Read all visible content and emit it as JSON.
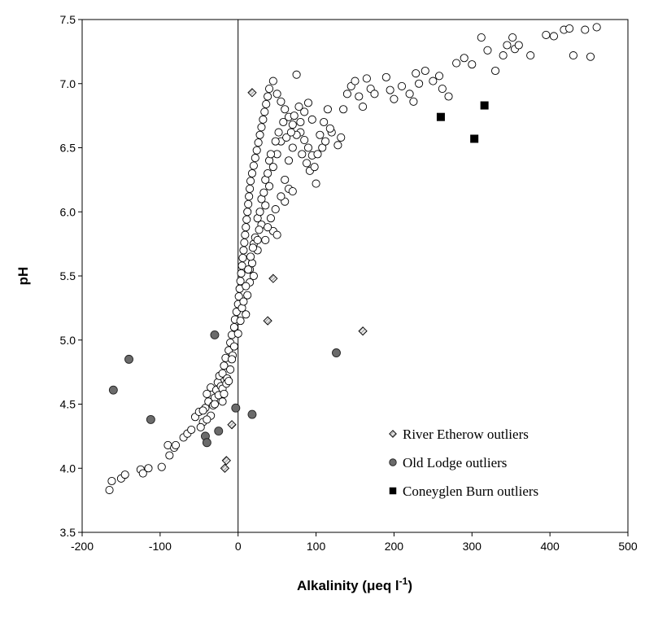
{
  "chart_data": {
    "type": "scatter",
    "xlabel": "Alkalinity (μeq l",
    "xlabel_superscript": "-1",
    "xlabel_close": ")",
    "ylabel": "pH",
    "xlim": [
      -200,
      500
    ],
    "ylim": [
      3.5,
      7.5
    ],
    "xticks": [
      -200,
      -100,
      0,
      100,
      200,
      300,
      400,
      500
    ],
    "yticks": [
      3.5,
      4.0,
      4.5,
      5.0,
      5.5,
      6.0,
      6.5,
      7.0,
      7.5
    ],
    "ytick_labels": [
      "3.5",
      "4.0",
      "4.5",
      "5.0",
      "5.5",
      "6.0",
      "6.5",
      "7.0",
      "7.5"
    ],
    "grid": false,
    "legend_position": "bottom-right",
    "vertical_reference_line_x": 0,
    "series": [
      {
        "name": "",
        "marker": "open-circle",
        "color": "#ffffff",
        "stroke": "#000000",
        "points": [
          [
            -165,
            3.83
          ],
          [
            -162,
            3.9
          ],
          [
            -150,
            3.92
          ],
          [
            -145,
            3.95
          ],
          [
            -125,
            3.99
          ],
          [
            -122,
            3.96
          ],
          [
            -115,
            4.0
          ],
          [
            -98,
            4.01
          ],
          [
            -90,
            4.18
          ],
          [
            -88,
            4.1
          ],
          [
            -82,
            4.16
          ],
          [
            -80,
            4.18
          ],
          [
            -70,
            4.24
          ],
          [
            -65,
            4.27
          ],
          [
            -60,
            4.3
          ],
          [
            -55,
            4.4
          ],
          [
            -50,
            4.44
          ],
          [
            -45,
            4.36
          ],
          [
            -42,
            4.47
          ],
          [
            -40,
            4.58
          ],
          [
            -38,
            4.52
          ],
          [
            -35,
            4.63
          ],
          [
            -32,
            4.49
          ],
          [
            -30,
            4.55
          ],
          [
            -28,
            4.61
          ],
          [
            -26,
            4.67
          ],
          [
            -24,
            4.72
          ],
          [
            -22,
            4.64
          ],
          [
            -20,
            4.74
          ],
          [
            -18,
            4.8
          ],
          [
            -16,
            4.86
          ],
          [
            -14,
            4.7
          ],
          [
            -12,
            4.92
          ],
          [
            -10,
            4.98
          ],
          [
            -8,
            5.04
          ],
          [
            -7,
            4.88
          ],
          [
            -5,
            5.1
          ],
          [
            -4,
            5.16
          ],
          [
            -2,
            5.22
          ],
          [
            0,
            5.28
          ],
          [
            1,
            5.34
          ],
          [
            2,
            5.4
          ],
          [
            3,
            5.46
          ],
          [
            4,
            5.52
          ],
          [
            5,
            5.58
          ],
          [
            6,
            5.64
          ],
          [
            7,
            5.7
          ],
          [
            8,
            5.76
          ],
          [
            9,
            5.82
          ],
          [
            10,
            5.88
          ],
          [
            11,
            5.94
          ],
          [
            12,
            6.0
          ],
          [
            13,
            6.06
          ],
          [
            14,
            6.12
          ],
          [
            15,
            6.18
          ],
          [
            16,
            6.24
          ],
          [
            18,
            6.3
          ],
          [
            20,
            6.36
          ],
          [
            22,
            6.42
          ],
          [
            24,
            6.48
          ],
          [
            26,
            6.54
          ],
          [
            28,
            6.6
          ],
          [
            30,
            6.66
          ],
          [
            32,
            6.72
          ],
          [
            34,
            6.78
          ],
          [
            36,
            6.84
          ],
          [
            38,
            6.9
          ],
          [
            40,
            6.96
          ],
          [
            45,
            7.02
          ],
          [
            50,
            6.92
          ],
          [
            55,
            6.86
          ],
          [
            60,
            6.8
          ],
          [
            65,
            6.74
          ],
          [
            70,
            6.68
          ],
          [
            75,
            7.07
          ],
          [
            80,
            6.62
          ],
          [
            85,
            6.56
          ],
          [
            90,
            6.5
          ],
          [
            95,
            6.44
          ],
          [
            100,
            6.22
          ],
          [
            20,
            5.5
          ],
          [
            25,
            5.7
          ],
          [
            30,
            5.9
          ],
          [
            35,
            6.05
          ],
          [
            40,
            6.2
          ],
          [
            45,
            6.35
          ],
          [
            50,
            6.45
          ],
          [
            55,
            6.55
          ],
          [
            60,
            6.25
          ],
          [
            65,
            6.4
          ],
          [
            70,
            6.5
          ],
          [
            75,
            6.6
          ],
          [
            80,
            6.7
          ],
          [
            85,
            6.78
          ],
          [
            90,
            6.85
          ],
          [
            95,
            6.72
          ],
          [
            15,
            5.55
          ],
          [
            20,
            5.75
          ],
          [
            25,
            5.95
          ],
          [
            30,
            6.1
          ],
          [
            35,
            6.25
          ],
          [
            40,
            6.4
          ],
          [
            45,
            5.85
          ],
          [
            50,
            5.82
          ],
          [
            10,
            5.2
          ],
          [
            12,
            5.35
          ],
          [
            15,
            5.45
          ],
          [
            18,
            5.6
          ],
          [
            22,
            5.8
          ],
          [
            28,
            6.0
          ],
          [
            33,
            6.15
          ],
          [
            38,
            6.3
          ],
          [
            105,
            6.6
          ],
          [
            110,
            6.7
          ],
          [
            115,
            6.8
          ],
          [
            120,
            6.62
          ],
          [
            128,
            6.52
          ],
          [
            132,
            6.58
          ],
          [
            135,
            6.8
          ],
          [
            140,
            6.92
          ],
          [
            145,
            6.98
          ],
          [
            150,
            7.02
          ],
          [
            155,
            6.9
          ],
          [
            160,
            6.82
          ],
          [
            165,
            7.04
          ],
          [
            170,
            6.96
          ],
          [
            175,
            6.92
          ],
          [
            190,
            7.05
          ],
          [
            195,
            6.95
          ],
          [
            200,
            6.88
          ],
          [
            210,
            6.98
          ],
          [
            220,
            6.92
          ],
          [
            225,
            6.86
          ],
          [
            228,
            7.08
          ],
          [
            232,
            7.0
          ],
          [
            240,
            7.1
          ],
          [
            250,
            7.02
          ],
          [
            258,
            7.06
          ],
          [
            262,
            6.96
          ],
          [
            270,
            6.9
          ],
          [
            280,
            7.16
          ],
          [
            290,
            7.2
          ],
          [
            300,
            7.15
          ],
          [
            312,
            7.36
          ],
          [
            320,
            7.26
          ],
          [
            330,
            7.1
          ],
          [
            340,
            7.22
          ],
          [
            345,
            7.3
          ],
          [
            352,
            7.36
          ],
          [
            355,
            7.27
          ],
          [
            360,
            7.3
          ],
          [
            375,
            7.22
          ],
          [
            395,
            7.38
          ],
          [
            405,
            7.37
          ],
          [
            418,
            7.42
          ],
          [
            425,
            7.43
          ],
          [
            430,
            7.22
          ],
          [
            445,
            7.42
          ],
          [
            452,
            7.21
          ],
          [
            460,
            7.44
          ],
          [
            -30,
            4.5
          ],
          [
            -25,
            4.57
          ],
          [
            -20,
            4.62
          ],
          [
            -15,
            4.66
          ],
          [
            -10,
            4.77
          ],
          [
            -5,
            4.95
          ],
          [
            0,
            5.05
          ],
          [
            3,
            5.15
          ],
          [
            -35,
            4.41
          ],
          [
            -40,
            4.38
          ],
          [
            -45,
            4.45
          ],
          [
            -48,
            4.32
          ],
          [
            -20,
            4.52
          ],
          [
            -18,
            4.58
          ],
          [
            -12,
            4.68
          ],
          [
            -8,
            4.85
          ],
          [
            5,
            5.25
          ],
          [
            7,
            5.3
          ],
          [
            10,
            5.42
          ],
          [
            13,
            5.55
          ],
          [
            16,
            5.65
          ],
          [
            19,
            5.72
          ],
          [
            25,
            5.78
          ],
          [
            27,
            5.86
          ],
          [
            42,
            6.45
          ],
          [
            48,
            6.55
          ],
          [
            52,
            6.62
          ],
          [
            58,
            6.7
          ],
          [
            62,
            6.58
          ],
          [
            68,
            6.62
          ],
          [
            72,
            6.75
          ],
          [
            78,
            6.82
          ],
          [
            82,
            6.45
          ],
          [
            88,
            6.38
          ],
          [
            92,
            6.32
          ],
          [
            98,
            6.35
          ],
          [
            102,
            6.45
          ],
          [
            108,
            6.5
          ],
          [
            112,
            6.55
          ],
          [
            118,
            6.65
          ],
          [
            60,
            6.08
          ],
          [
            65,
            6.18
          ],
          [
            70,
            6.16
          ],
          [
            55,
            6.12
          ],
          [
            48,
            6.02
          ],
          [
            42,
            5.95
          ],
          [
            38,
            5.88
          ],
          [
            35,
            5.78
          ]
        ]
      },
      {
        "name": "River Etherow outliers",
        "marker": "diamond-hatched",
        "color": "#d0d0d0",
        "stroke": "#000000",
        "points": [
          [
            18,
            6.93
          ],
          [
            45,
            5.48
          ],
          [
            38,
            5.15
          ],
          [
            160,
            5.07
          ],
          [
            -8,
            4.34
          ],
          [
            -15,
            4.06
          ],
          [
            -17,
            4.0
          ]
        ]
      },
      {
        "name": "Old Lodge outliers",
        "marker": "filled-circle",
        "color": "#6b6b6b",
        "stroke": "#000000",
        "points": [
          [
            -160,
            4.61
          ],
          [
            -140,
            4.85
          ],
          [
            -112,
            4.38
          ],
          [
            -30,
            5.04
          ],
          [
            -25,
            4.29
          ],
          [
            -42,
            4.25
          ],
          [
            -40,
            4.2
          ],
          [
            -3,
            4.47
          ],
          [
            18,
            4.42
          ],
          [
            126,
            4.9
          ]
        ]
      },
      {
        "name": "Coneyglen Burn outliers",
        "marker": "filled-square",
        "color": "#000000",
        "stroke": "#000000",
        "points": [
          [
            260,
            6.74
          ],
          [
            316,
            6.83
          ],
          [
            303,
            6.57
          ]
        ]
      }
    ]
  }
}
